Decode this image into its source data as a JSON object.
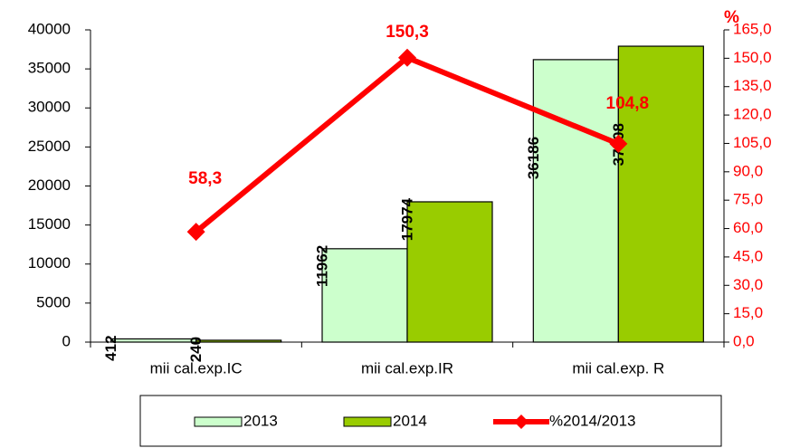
{
  "chart_data": {
    "type": "bar",
    "categories": [
      "mii cal.exp.IC",
      "mii cal.exp.IR",
      "mii cal.exp. R"
    ],
    "series": [
      {
        "name": "2013",
        "color": "#ccffcc",
        "values": [
          412,
          11962,
          36186
        ]
      },
      {
        "name": "2014",
        "color": "#99cc00",
        "values": [
          240,
          17974,
          37908
        ]
      },
      {
        "name": "%2014/2013",
        "color": "#ff0000",
        "type": "line",
        "axis": "y2",
        "values": [
          58.3,
          150.3,
          104.8
        ],
        "value_labels": [
          "58,3",
          "150,3",
          "104,8"
        ]
      }
    ],
    "ylim": [
      0,
      40000
    ],
    "yticks": [
      0,
      5000,
      10000,
      15000,
      20000,
      25000,
      30000,
      35000,
      40000
    ],
    "y2label": "%",
    "y2lim": [
      0,
      165
    ],
    "y2ticks": [
      {
        "value": 0,
        "label": "0,0"
      },
      {
        "value": 15,
        "label": "15,0"
      },
      {
        "value": 30,
        "label": "30,0"
      },
      {
        "value": 45,
        "label": "45,0"
      },
      {
        "value": 60,
        "label": "60,0"
      },
      {
        "value": 75,
        "label": "75,0"
      },
      {
        "value": 90,
        "label": "90,0"
      },
      {
        "value": 105,
        "label": "105,0"
      },
      {
        "value": 120,
        "label": "120,0"
      },
      {
        "value": 135,
        "label": "135,0"
      },
      {
        "value": 150,
        "label": "150,0"
      },
      {
        "value": 165,
        "label": "165,0"
      }
    ],
    "legend": "bottom"
  }
}
